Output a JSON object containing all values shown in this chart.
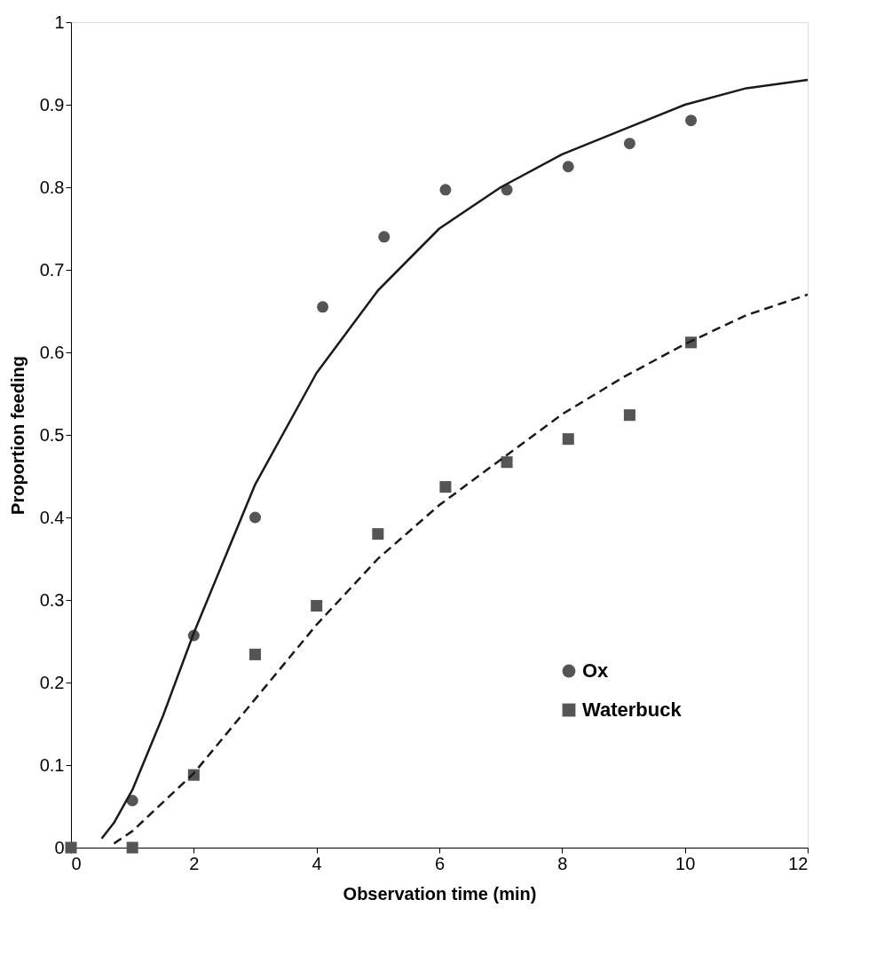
{
  "chart_data": {
    "type": "scatter",
    "xlabel": "Observation time (min)",
    "ylabel": "Proportion feeding",
    "xlim": [
      0,
      12
    ],
    "xticks": [
      0,
      2,
      4,
      6,
      8,
      10,
      12
    ],
    "ylim": [
      0,
      1
    ],
    "yticks": [
      0,
      0.1,
      0.2,
      0.3,
      0.4,
      0.5,
      0.6,
      0.7,
      0.8,
      0.9,
      1
    ],
    "grid": false,
    "legend": "bottom right",
    "series": [
      {
        "name": "Ox",
        "marker": "circle",
        "color": "#555555",
        "x": [
          1,
          2,
          3,
          4.1,
          5.1,
          6.1,
          7.1,
          8.1,
          9.1,
          10.1
        ],
        "values": [
          0.057,
          0.257,
          0.4,
          0.655,
          0.74,
          0.797,
          0.797,
          0.825,
          0.853,
          0.881
        ]
      },
      {
        "name": "Waterbuck",
        "marker": "square",
        "color": "#555555",
        "x": [
          0,
          1,
          2,
          3,
          4,
          5,
          6.1,
          7.1,
          8.1,
          9.1,
          10.1
        ],
        "values": [
          0,
          0,
          0.088,
          0.234,
          0.293,
          0.38,
          0.437,
          0.467,
          0.495,
          0.524,
          0.612
        ]
      },
      {
        "type": "line",
        "line_style": "solid",
        "color": "#1a1a1a",
        "x": [
          0.5,
          0.7,
          1,
          1.5,
          2,
          3,
          4,
          5,
          6,
          7,
          8,
          9,
          10,
          11,
          12
        ],
        "values": [
          0.011,
          0.03,
          0.07,
          0.16,
          0.26,
          0.44,
          0.575,
          0.675,
          0.75,
          0.8,
          0.84,
          0.87,
          0.9,
          0.92,
          0.93
        ]
      },
      {
        "type": "line",
        "line_style": "dashed",
        "color": "#1a1a1a",
        "x": [
          0.7,
          1,
          2,
          3,
          4,
          5,
          6,
          7,
          8,
          9,
          10,
          11,
          12
        ],
        "values": [
          0.005,
          0.02,
          0.09,
          0.18,
          0.27,
          0.35,
          0.415,
          0.47,
          0.525,
          0.57,
          0.61,
          0.645,
          0.67
        ]
      }
    ]
  }
}
